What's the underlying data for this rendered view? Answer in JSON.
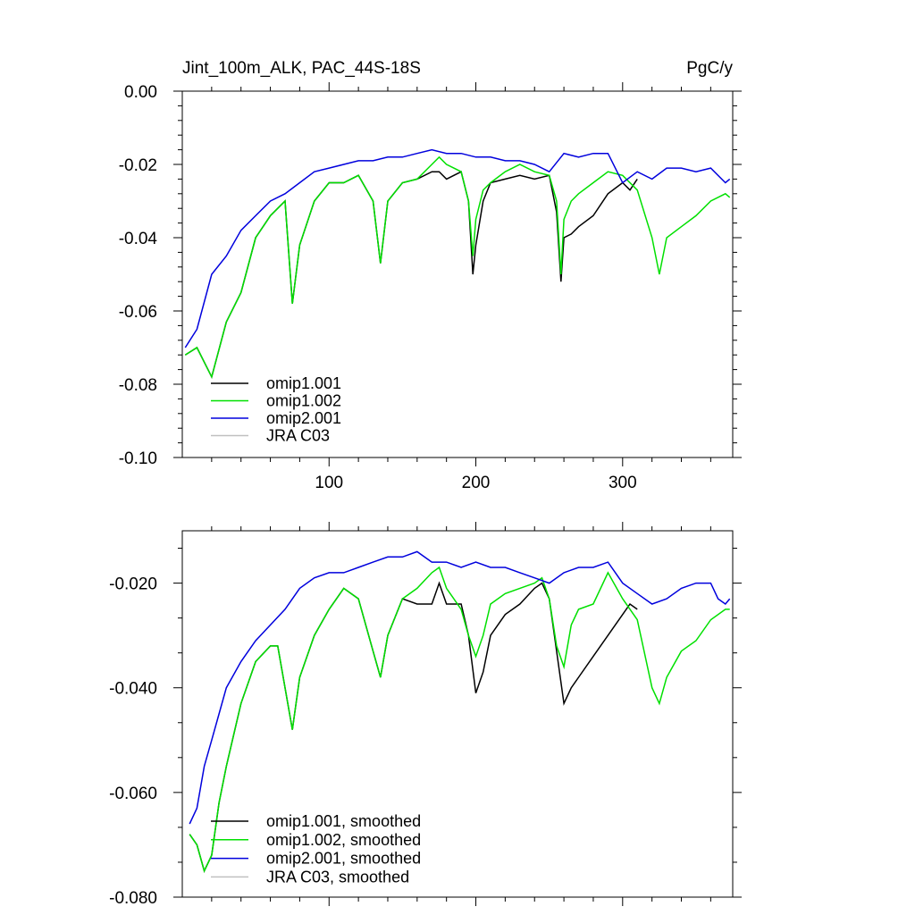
{
  "chart_data": [
    {
      "type": "line",
      "title_left": "Jint_100m_ALK, PAC_44S-18S",
      "title_right": "PgC/y",
      "xlabel": "",
      "ylabel": "",
      "xlim": [
        0,
        375
      ],
      "ylim": [
        -0.1,
        0.0
      ],
      "xticks": [
        100,
        200,
        300
      ],
      "xtick_labels": [
        "100",
        "200",
        "300"
      ],
      "yticks": [
        0.0,
        -0.02,
        -0.04,
        -0.06,
        -0.08,
        -0.1
      ],
      "ytick_labels": [
        "0.00",
        "-0.02",
        "-0.04",
        "-0.06",
        "-0.08",
        "-0.10"
      ],
      "legend_position": "bottom-left",
      "series": [
        {
          "name": "omip1.001",
          "color": "#000000",
          "x": [
            2,
            10,
            20,
            30,
            40,
            50,
            60,
            70,
            75,
            80,
            90,
            100,
            110,
            120,
            130,
            135,
            140,
            150,
            160,
            170,
            175,
            180,
            190,
            195,
            198,
            200,
            205,
            210,
            220,
            230,
            240,
            250,
            255,
            258,
            260,
            265,
            270,
            280,
            290,
            300,
            305,
            310
          ],
          "y": [
            -0.072,
            -0.07,
            -0.078,
            -0.063,
            -0.055,
            -0.04,
            -0.034,
            -0.03,
            -0.058,
            -0.042,
            -0.03,
            -0.025,
            -0.025,
            -0.023,
            -0.03,
            -0.047,
            -0.03,
            -0.025,
            -0.024,
            -0.022,
            -0.022,
            -0.024,
            -0.022,
            -0.03,
            -0.05,
            -0.042,
            -0.03,
            -0.025,
            -0.024,
            -0.023,
            -0.024,
            -0.023,
            -0.033,
            -0.052,
            -0.04,
            -0.039,
            -0.037,
            -0.034,
            -0.028,
            -0.025,
            -0.027,
            -0.024
          ]
        },
        {
          "name": "omip1.002",
          "color": "#00e000",
          "x": [
            2,
            10,
            20,
            30,
            40,
            50,
            60,
            70,
            75,
            80,
            90,
            100,
            110,
            120,
            130,
            135,
            140,
            150,
            160,
            170,
            175,
            180,
            190,
            195,
            198,
            200,
            205,
            210,
            220,
            230,
            240,
            250,
            255,
            258,
            260,
            265,
            270,
            280,
            290,
            300,
            310,
            320,
            325,
            330,
            340,
            350,
            360,
            370,
            373
          ],
          "y": [
            -0.072,
            -0.07,
            -0.078,
            -0.063,
            -0.055,
            -0.04,
            -0.034,
            -0.03,
            -0.058,
            -0.042,
            -0.03,
            -0.025,
            -0.025,
            -0.023,
            -0.03,
            -0.047,
            -0.03,
            -0.025,
            -0.024,
            -0.02,
            -0.018,
            -0.02,
            -0.022,
            -0.03,
            -0.045,
            -0.035,
            -0.027,
            -0.025,
            -0.022,
            -0.02,
            -0.022,
            -0.023,
            -0.03,
            -0.05,
            -0.035,
            -0.03,
            -0.028,
            -0.025,
            -0.022,
            -0.023,
            -0.027,
            -0.04,
            -0.05,
            -0.04,
            -0.037,
            -0.034,
            -0.03,
            -0.028,
            -0.029
          ]
        },
        {
          "name": "omip2.001",
          "color": "#0000dd",
          "x": [
            2,
            10,
            20,
            30,
            40,
            50,
            60,
            70,
            80,
            90,
            100,
            110,
            120,
            130,
            140,
            150,
            160,
            170,
            180,
            190,
            200,
            210,
            220,
            230,
            240,
            250,
            260,
            270,
            280,
            290,
            300,
            310,
            320,
            330,
            340,
            350,
            360,
            370,
            373
          ],
          "y": [
            -0.07,
            -0.065,
            -0.05,
            -0.045,
            -0.038,
            -0.034,
            -0.03,
            -0.028,
            -0.025,
            -0.022,
            -0.021,
            -0.02,
            -0.019,
            -0.019,
            -0.018,
            -0.018,
            -0.017,
            -0.016,
            -0.017,
            -0.017,
            -0.018,
            -0.018,
            -0.019,
            -0.019,
            -0.02,
            -0.022,
            -0.017,
            -0.018,
            -0.017,
            -0.017,
            -0.025,
            -0.022,
            -0.024,
            -0.021,
            -0.021,
            -0.022,
            -0.021,
            -0.025,
            -0.024
          ]
        },
        {
          "name": "JRA C03",
          "color": "#c0c0c0",
          "x": [],
          "y": []
        }
      ]
    },
    {
      "type": "line",
      "title_left": "",
      "title_right": "",
      "xlabel": "",
      "ylabel": "",
      "xlim": [
        0,
        375
      ],
      "ylim": [
        -0.08,
        -0.01
      ],
      "xticks": [
        100,
        200,
        300
      ],
      "xtick_labels": [],
      "yticks": [
        -0.02,
        -0.04,
        -0.06,
        -0.08
      ],
      "ytick_labels": [
        "-0.020",
        "-0.040",
        "-0.060",
        "-0.080"
      ],
      "legend_position": "bottom-left",
      "series": [
        {
          "name": "omip1.001, smoothed",
          "color": "#000000",
          "x": [
            5,
            10,
            15,
            20,
            25,
            30,
            40,
            50,
            60,
            65,
            70,
            75,
            80,
            90,
            100,
            110,
            120,
            130,
            135,
            140,
            150,
            160,
            170,
            175,
            180,
            190,
            195,
            200,
            205,
            210,
            220,
            230,
            240,
            245,
            250,
            255,
            260,
            265,
            270,
            280,
            290,
            300,
            305,
            310
          ],
          "y": [
            -0.068,
            -0.07,
            -0.075,
            -0.072,
            -0.062,
            -0.055,
            -0.043,
            -0.035,
            -0.032,
            -0.032,
            -0.04,
            -0.048,
            -0.038,
            -0.03,
            -0.025,
            -0.021,
            -0.023,
            -0.033,
            -0.038,
            -0.03,
            -0.023,
            -0.024,
            -0.024,
            -0.02,
            -0.024,
            -0.024,
            -0.03,
            -0.041,
            -0.037,
            -0.03,
            -0.026,
            -0.024,
            -0.021,
            -0.02,
            -0.023,
            -0.033,
            -0.043,
            -0.04,
            -0.038,
            -0.034,
            -0.03,
            -0.026,
            -0.024,
            -0.025
          ]
        },
        {
          "name": "omip1.002, smoothed",
          "color": "#00e000",
          "x": [
            5,
            10,
            15,
            20,
            25,
            30,
            40,
            50,
            60,
            65,
            70,
            75,
            80,
            90,
            100,
            110,
            120,
            130,
            135,
            140,
            150,
            160,
            170,
            175,
            180,
            190,
            195,
            200,
            205,
            210,
            220,
            230,
            240,
            245,
            250,
            255,
            260,
            265,
            270,
            280,
            290,
            300,
            310,
            320,
            325,
            330,
            340,
            350,
            360,
            370,
            373
          ],
          "y": [
            -0.068,
            -0.07,
            -0.075,
            -0.072,
            -0.062,
            -0.055,
            -0.043,
            -0.035,
            -0.032,
            -0.032,
            -0.04,
            -0.048,
            -0.038,
            -0.03,
            -0.025,
            -0.021,
            -0.023,
            -0.033,
            -0.038,
            -0.03,
            -0.023,
            -0.021,
            -0.018,
            -0.017,
            -0.021,
            -0.025,
            -0.03,
            -0.034,
            -0.03,
            -0.024,
            -0.022,
            -0.021,
            -0.02,
            -0.019,
            -0.023,
            -0.032,
            -0.036,
            -0.028,
            -0.025,
            -0.024,
            -0.018,
            -0.023,
            -0.027,
            -0.04,
            -0.043,
            -0.038,
            -0.033,
            -0.031,
            -0.027,
            -0.025,
            -0.025
          ]
        },
        {
          "name": "omip2.001, smoothed",
          "color": "#0000dd",
          "x": [
            5,
            10,
            15,
            20,
            25,
            30,
            40,
            50,
            60,
            70,
            80,
            90,
            100,
            110,
            120,
            130,
            140,
            150,
            160,
            170,
            180,
            190,
            200,
            210,
            220,
            230,
            240,
            250,
            260,
            270,
            280,
            290,
            300,
            310,
            320,
            330,
            340,
            350,
            360,
            365,
            370,
            373
          ],
          "y": [
            -0.066,
            -0.063,
            -0.055,
            -0.05,
            -0.045,
            -0.04,
            -0.035,
            -0.031,
            -0.028,
            -0.025,
            -0.021,
            -0.019,
            -0.018,
            -0.018,
            -0.017,
            -0.016,
            -0.015,
            -0.015,
            -0.014,
            -0.016,
            -0.016,
            -0.017,
            -0.016,
            -0.017,
            -0.017,
            -0.018,
            -0.019,
            -0.02,
            -0.018,
            -0.017,
            -0.017,
            -0.016,
            -0.02,
            -0.022,
            -0.024,
            -0.023,
            -0.021,
            -0.02,
            -0.02,
            -0.023,
            -0.024,
            -0.023
          ]
        },
        {
          "name": "JRA C03, smoothed",
          "color": "#c0c0c0",
          "x": [],
          "y": []
        }
      ]
    }
  ]
}
